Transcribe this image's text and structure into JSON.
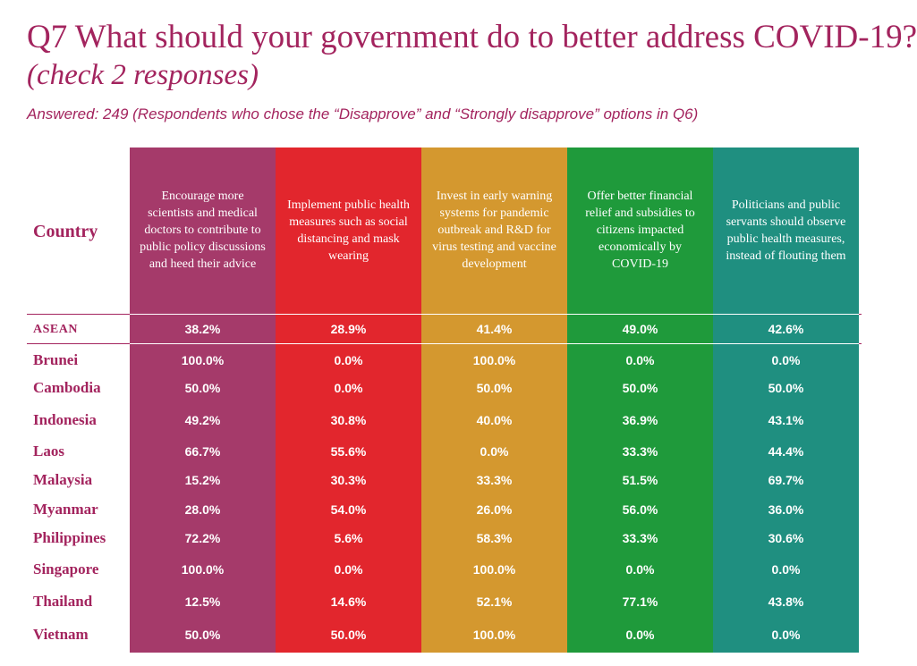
{
  "title": {
    "question": "Q7 What should your government do to better address COVID-19?",
    "instruction": "(check 2 responses)"
  },
  "answered": "Answered: 249 (Respondents who chose the “Disapprove” and “Strongly disapprove” options in Q6)",
  "chart_data": {
    "type": "table",
    "row_header": "Country",
    "columns": [
      {
        "label": "Encourage more scientists and medical doctors to contribute to public policy discussions and heed their advice",
        "color": "#a53a6a"
      },
      {
        "label": "Implement public health measures such as social distancing and mask wearing",
        "color": "#e2262d"
      },
      {
        "label": "Invest in early warning systems for pandemic outbreak and R&D for virus testing and vaccine development",
        "color": "#d4982f"
      },
      {
        "label": "Offer better financial relief and subsidies to citizens impacted economically by COVID-19",
        "color": "#1f9a3b"
      },
      {
        "label": "Politicians and public servants should observe public health measures, instead of flouting them",
        "color": "#1f8f80"
      }
    ],
    "rows": [
      {
        "country": "ASEAN",
        "values": [
          "38.2%",
          "28.9%",
          "41.4%",
          "49.0%",
          "42.6%"
        ]
      },
      {
        "country": "Brunei",
        "values": [
          "100.0%",
          "0.0%",
          "100.0%",
          "0.0%",
          "0.0%"
        ]
      },
      {
        "country": "Cambodia",
        "values": [
          "50.0%",
          "0.0%",
          "50.0%",
          "50.0%",
          "50.0%"
        ]
      },
      {
        "country": "Indonesia",
        "values": [
          "49.2%",
          "30.8%",
          "40.0%",
          "36.9%",
          "43.1%"
        ]
      },
      {
        "country": "Laos",
        "values": [
          "66.7%",
          "55.6%",
          "0.0%",
          "33.3%",
          "44.4%"
        ]
      },
      {
        "country": "Malaysia",
        "values": [
          "15.2%",
          "30.3%",
          "33.3%",
          "51.5%",
          "69.7%"
        ]
      },
      {
        "country": "Myanmar",
        "values": [
          "28.0%",
          "54.0%",
          "26.0%",
          "56.0%",
          "36.0%"
        ]
      },
      {
        "country": "Philippines",
        "values": [
          "72.2%",
          "5.6%",
          "58.3%",
          "33.3%",
          "30.6%"
        ]
      },
      {
        "country": "Singapore",
        "values": [
          "100.0%",
          "0.0%",
          "100.0%",
          "0.0%",
          "0.0%"
        ]
      },
      {
        "country": "Thailand",
        "values": [
          "12.5%",
          "14.6%",
          "52.1%",
          "77.1%",
          "43.8%"
        ]
      },
      {
        "country": "Vietnam",
        "values": [
          "50.0%",
          "50.0%",
          "100.0%",
          "0.0%",
          "0.0%"
        ]
      }
    ]
  }
}
